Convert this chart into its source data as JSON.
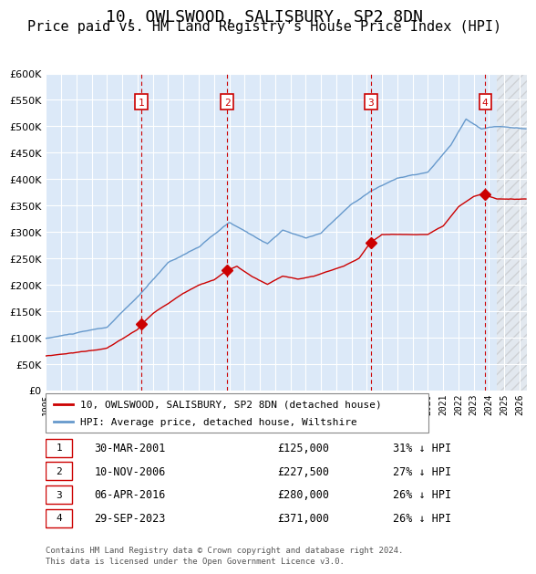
{
  "title": "10, OWLSWOOD, SALISBURY, SP2 8DN",
  "subtitle": "Price paid vs. HM Land Registry's House Price Index (HPI)",
  "xlabel": "",
  "ylabel": "",
  "ylim": [
    0,
    600000
  ],
  "yticks": [
    0,
    50000,
    100000,
    150000,
    200000,
    250000,
    300000,
    350000,
    400000,
    450000,
    500000,
    550000,
    600000
  ],
  "xlim_start": 1995.0,
  "xlim_end": 2026.5,
  "background_color": "#dce9f8",
  "hatch_color": "#c0c0c0",
  "grid_color": "#ffffff",
  "hpi_color": "#6699cc",
  "price_color": "#cc0000",
  "sale_marker_color": "#cc0000",
  "dashed_line_color": "#cc0000",
  "sales": [
    {
      "date_num": 2001.247,
      "price": 125000,
      "label": "1",
      "date_str": "30-MAR-2001",
      "pct": "31%"
    },
    {
      "date_num": 2006.86,
      "price": 227500,
      "label": "2",
      "date_str": "10-NOV-2006",
      "pct": "27%"
    },
    {
      "date_num": 2016.267,
      "price": 280000,
      "label": "3",
      "date_str": "06-APR-2016",
      "pct": "26%"
    },
    {
      "date_num": 2023.747,
      "price": 371000,
      "label": "4",
      "date_str": "29-SEP-2023",
      "pct": "26%"
    }
  ],
  "legend_entries": [
    {
      "label": "10, OWLSWOOD, SALISBURY, SP2 8DN (detached house)",
      "color": "#cc0000"
    },
    {
      "label": "HPI: Average price, detached house, Wiltshire",
      "color": "#6699cc"
    }
  ],
  "footer": "Contains HM Land Registry data © Crown copyright and database right 2024.\nThis data is licensed under the Open Government Licence v3.0.",
  "title_fontsize": 13,
  "subtitle_fontsize": 11
}
